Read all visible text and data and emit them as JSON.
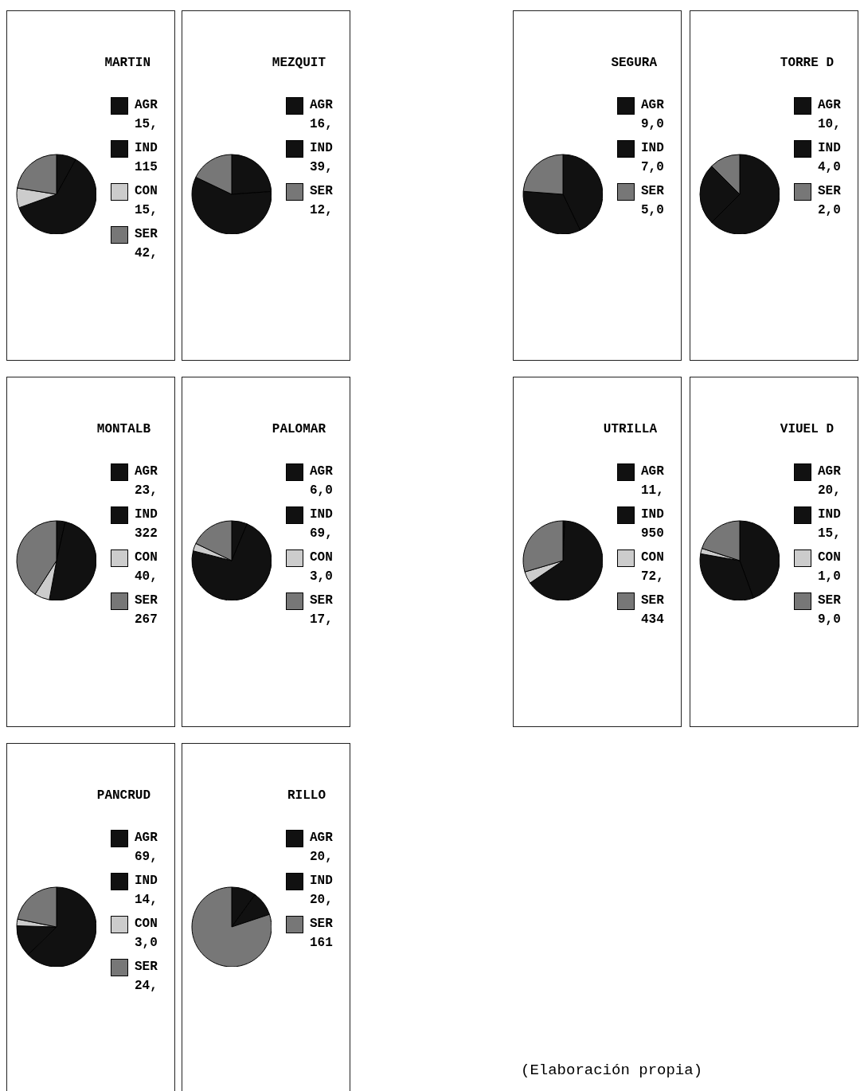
{
  "chart_data": [
    {
      "type": "pie",
      "title": "MARTIN",
      "categories": [
        "AGR",
        "IND",
        "CON",
        "SER"
      ],
      "values": [
        15,
        115,
        15,
        42
      ],
      "value_labels": [
        "15,",
        "115",
        "15,",
        "42,"
      ],
      "colors": [
        "#111111",
        "#111111",
        "#cccccc",
        "#777777"
      ],
      "legend": "right"
    },
    {
      "type": "pie",
      "title": "MEZQUIT",
      "categories": [
        "AGR",
        "IND",
        "SER"
      ],
      "values": [
        16,
        39,
        12
      ],
      "value_labels": [
        "16,",
        "39,",
        "12,"
      ],
      "colors": [
        "#111111",
        "#111111",
        "#777777"
      ],
      "legend": "right"
    },
    {
      "type": "pie",
      "title": "SEGURA",
      "categories": [
        "AGR",
        "IND",
        "SER"
      ],
      "values": [
        9,
        7,
        5
      ],
      "value_labels": [
        "9,0",
        "7,0",
        "5,0"
      ],
      "colors": [
        "#111111",
        "#111111",
        "#777777"
      ],
      "legend": "right"
    },
    {
      "type": "pie",
      "title": "TORRE D",
      "categories": [
        "AGR",
        "IND",
        "SER"
      ],
      "values": [
        10,
        4,
        2
      ],
      "value_labels": [
        "10,",
        "4,0",
        "2,0"
      ],
      "colors": [
        "#111111",
        "#111111",
        "#777777"
      ],
      "legend": "right"
    },
    {
      "type": "pie",
      "title": "MONTALB",
      "categories": [
        "AGR",
        "IND",
        "CON",
        "SER"
      ],
      "values": [
        23,
        322,
        40,
        267
      ],
      "value_labels": [
        "23,",
        "322",
        "40,",
        "267"
      ],
      "colors": [
        "#111111",
        "#111111",
        "#cccccc",
        "#777777"
      ],
      "legend": "right"
    },
    {
      "type": "pie",
      "title": "PALOMAR",
      "categories": [
        "AGR",
        "IND",
        "CON",
        "SER"
      ],
      "values": [
        6,
        69,
        3,
        17
      ],
      "value_labels": [
        "6,0",
        "69,",
        "3,0",
        "17,"
      ],
      "colors": [
        "#111111",
        "#111111",
        "#cccccc",
        "#777777"
      ],
      "legend": "right"
    },
    {
      "type": "pie",
      "title": "UTRILLA",
      "categories": [
        "AGR",
        "IND",
        "CON",
        "SER"
      ],
      "values": [
        11,
        950,
        72,
        434
      ],
      "value_labels": [
        "11,",
        "950",
        "72,",
        "434"
      ],
      "colors": [
        "#111111",
        "#111111",
        "#cccccc",
        "#777777"
      ],
      "legend": "right"
    },
    {
      "type": "pie",
      "title": "VIUEL D",
      "categories": [
        "AGR",
        "IND",
        "CON",
        "SER"
      ],
      "values": [
        20,
        15,
        1,
        9
      ],
      "value_labels": [
        "20,",
        "15,",
        "1,0",
        "9,0"
      ],
      "colors": [
        "#111111",
        "#111111",
        "#cccccc",
        "#777777"
      ],
      "legend": "right"
    },
    {
      "type": "pie",
      "title": "PANCRUD",
      "categories": [
        "AGR",
        "IND",
        "CON",
        "SER"
      ],
      "values": [
        69,
        14,
        3,
        24
      ],
      "value_labels": [
        "69,",
        "14,",
        "3,0",
        "24,"
      ],
      "colors": [
        "#111111",
        "#111111",
        "#cccccc",
        "#777777"
      ],
      "legend": "right"
    },
    {
      "type": "pie",
      "title": "RILLO",
      "categories": [
        "AGR",
        "IND",
        "SER"
      ],
      "values": [
        20,
        20,
        161
      ],
      "value_labels": [
        "20,",
        "20,",
        "161"
      ],
      "colors": [
        "#111111",
        "#111111",
        "#777777"
      ],
      "legend": "right",
      "annotations": [
        "(Elaboración propia)"
      ]
    }
  ]
}
